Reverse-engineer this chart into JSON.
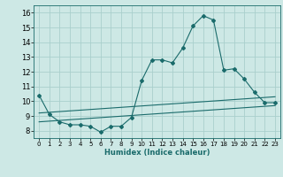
{
  "title": "",
  "xlabel": "Humidex (Indice chaleur)",
  "background_color": "#cde8e5",
  "grid_color": "#aacfcc",
  "line_color": "#1a6b6b",
  "xlim": [
    -0.5,
    23.5
  ],
  "ylim": [
    7.5,
    16.5
  ],
  "xticks": [
    0,
    1,
    2,
    3,
    4,
    5,
    6,
    7,
    8,
    9,
    10,
    11,
    12,
    13,
    14,
    15,
    16,
    17,
    18,
    19,
    20,
    21,
    22,
    23
  ],
  "yticks": [
    8,
    9,
    10,
    11,
    12,
    13,
    14,
    15,
    16
  ],
  "series1_x": [
    0,
    1,
    2,
    3,
    4,
    5,
    6,
    7,
    8,
    9,
    10,
    11,
    12,
    13,
    14,
    15,
    16,
    17,
    18,
    19,
    20,
    21,
    22,
    23
  ],
  "series1_y": [
    10.4,
    9.1,
    8.6,
    8.4,
    8.4,
    8.3,
    7.9,
    8.3,
    8.3,
    8.9,
    11.4,
    12.8,
    12.8,
    12.6,
    13.6,
    15.1,
    15.8,
    15.5,
    12.1,
    12.2,
    11.5,
    10.6,
    9.9,
    9.9
  ],
  "series2_x": [
    0,
    23
  ],
  "series2_y": [
    9.2,
    10.3
  ],
  "series3_x": [
    0,
    23
  ],
  "series3_y": [
    8.6,
    9.7
  ]
}
